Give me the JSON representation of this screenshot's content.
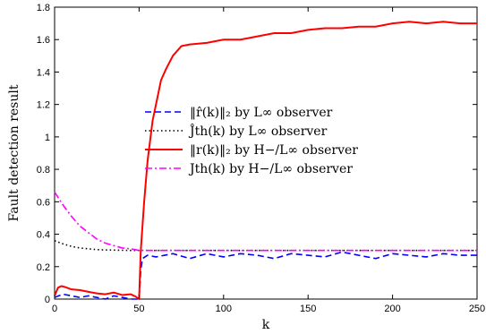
{
  "chart_data": {
    "type": "line",
    "xlabel": "k",
    "ylabel": "Fault detection result",
    "xlim": [
      0,
      250
    ],
    "ylim": [
      0,
      1.8
    ],
    "xticks": [
      "0",
      "50",
      "100",
      "150",
      "200",
      "250"
    ],
    "yticks": [
      "0",
      "0.2",
      "0.4",
      "0.6",
      "0.8",
      "1",
      "1.2",
      "1.4",
      "1.6",
      "1.8"
    ],
    "grid": false,
    "legend_position": "center-right",
    "series": [
      {
        "name": "‖r̂(k)‖₂ by L∞ observer",
        "color": "#0000ff",
        "dash": "dashed",
        "x": [
          0,
          5,
          10,
          15,
          20,
          25,
          30,
          35,
          40,
          45,
          48,
          49,
          50,
          51,
          52,
          55,
          60,
          70,
          80,
          90,
          100,
          110,
          120,
          130,
          140,
          150,
          160,
          170,
          180,
          190,
          200,
          210,
          220,
          230,
          240,
          250
        ],
        "y": [
          0.01,
          0.03,
          0.02,
          0.01,
          0.02,
          0.01,
          0.0,
          0.02,
          0.01,
          0.0,
          0.0,
          0.0,
          0.0,
          0.18,
          0.25,
          0.27,
          0.26,
          0.28,
          0.25,
          0.28,
          0.26,
          0.28,
          0.27,
          0.25,
          0.28,
          0.27,
          0.26,
          0.29,
          0.27,
          0.25,
          0.28,
          0.27,
          0.26,
          0.28,
          0.27,
          0.27
        ]
      },
      {
        "name": "Ĵth(k) by L∞ observer",
        "color": "#000000",
        "dash": "dotted",
        "x": [
          0,
          5,
          10,
          15,
          20,
          25,
          30,
          35,
          40,
          45,
          50,
          100,
          150,
          200,
          250
        ],
        "y": [
          0.36,
          0.34,
          0.325,
          0.315,
          0.31,
          0.305,
          0.303,
          0.302,
          0.301,
          0.3,
          0.3,
          0.3,
          0.3,
          0.3,
          0.3
        ]
      },
      {
        "name": "‖r(k)‖₂ by H−/L∞ observer",
        "color": "#ff0000",
        "dash": "solid",
        "x": [
          0,
          2,
          4,
          6,
          10,
          15,
          20,
          25,
          30,
          35,
          40,
          45,
          48,
          50,
          51,
          53,
          55,
          58,
          60,
          63,
          66,
          70,
          75,
          80,
          90,
          100,
          110,
          120,
          130,
          140,
          150,
          160,
          170,
          180,
          190,
          200,
          210,
          220,
          230,
          240,
          250
        ],
        "y": [
          0.02,
          0.07,
          0.08,
          0.075,
          0.06,
          0.055,
          0.045,
          0.035,
          0.03,
          0.04,
          0.025,
          0.03,
          0.015,
          0.0,
          0.3,
          0.6,
          0.85,
          1.1,
          1.2,
          1.35,
          1.42,
          1.5,
          1.56,
          1.57,
          1.58,
          1.6,
          1.6,
          1.62,
          1.64,
          1.64,
          1.66,
          1.67,
          1.67,
          1.68,
          1.68,
          1.7,
          1.71,
          1.7,
          1.71,
          1.7,
          1.7
        ]
      },
      {
        "name": "Jth(k) by H−/L∞ observer",
        "color": "#ff00ff",
        "dash": "dashdot",
        "x": [
          0,
          5,
          10,
          15,
          20,
          25,
          30,
          35,
          40,
          45,
          50,
          100,
          150,
          200,
          250
        ],
        "y": [
          0.66,
          0.58,
          0.51,
          0.45,
          0.41,
          0.37,
          0.345,
          0.33,
          0.315,
          0.31,
          0.3,
          0.3,
          0.3,
          0.3,
          0.3
        ]
      }
    ]
  }
}
